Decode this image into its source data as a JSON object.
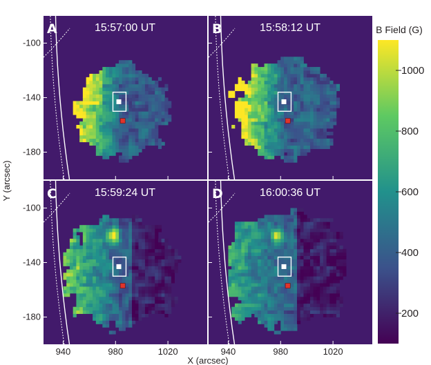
{
  "figure": {
    "xlabel": "X (arcsec)",
    "ylabel": "Y (arcsec)",
    "colorbar_label": "B Field (G)"
  },
  "chart_data": {
    "type": "heatmap",
    "panels": [
      {
        "letter": "A",
        "time": "15:57:00 UT",
        "variant": 0
      },
      {
        "letter": "B",
        "time": "15:58:12 UT",
        "variant": 1
      },
      {
        "letter": "C",
        "time": "15:59:24 UT",
        "variant": 2
      },
      {
        "letter": "D",
        "time": "16:00:36 UT",
        "variant": 3
      }
    ],
    "x_ticks": [
      940,
      980,
      1020
    ],
    "y_ticks": [
      -100,
      -140,
      -180
    ],
    "xlim": [
      925,
      1050
    ],
    "ylim": [
      -200,
      -80
    ],
    "colorbar": {
      "min": 100,
      "max": 1100,
      "ticks": [
        200,
        400,
        600,
        800,
        1000
      ],
      "colormap": [
        "#440154",
        "#3b528b",
        "#21918c",
        "#5ec962",
        "#fde725"
      ]
    },
    "background_value": 100,
    "box": {
      "x": [
        978,
        988
      ],
      "y": [
        -150,
        -136
      ]
    },
    "white_marker": {
      "x": 982.5,
      "y": -143
    },
    "red_marker": {
      "x": 985.5,
      "y": -157
    },
    "colors": {
      "background": "#421a6b",
      "white_marker": "#ffffff",
      "red_marker": "#e0342c",
      "limb_lines": "#ffffff"
    }
  }
}
